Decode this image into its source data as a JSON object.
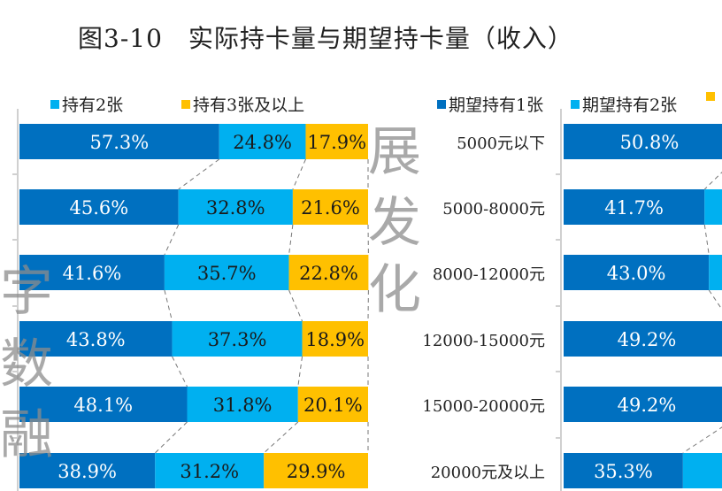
{
  "title": "图3-10　实际持卡量与期望持卡量（收入）",
  "colors": {
    "s1": "#0070C0",
    "s2": "#00B0F0",
    "s3": "#FFC000"
  },
  "watermark": [
    "融",
    "数",
    "字",
    "化",
    "发",
    "展"
  ],
  "chart_data": [
    {
      "type": "bar",
      "orientation": "horizontal",
      "stacked": "100%",
      "legend": [
        "持有2张",
        "持有3张及以上"
      ],
      "legend_placement": "top",
      "series": [
        {
          "values": [
            57.3,
            45.6,
            41.6,
            43.8,
            48.1,
            38.9
          ],
          "labels": [
            "57.3%",
            "45.6%",
            "41.6%",
            "43.8%",
            "48.1%",
            "38.9%"
          ]
        },
        {
          "name": "持有2张",
          "values": [
            24.8,
            32.8,
            35.7,
            37.3,
            31.8,
            31.2
          ],
          "labels": [
            "24.8%",
            "32.8%",
            "35.7%",
            "37.3%",
            "31.8%",
            "31.2%"
          ]
        },
        {
          "name": "持有3张及以上",
          "values": [
            17.9,
            21.6,
            22.8,
            18.9,
            20.1,
            29.9
          ],
          "labels": [
            "17.9%",
            "21.6%",
            "22.8%",
            "18.9%",
            "20.1%",
            "29.9%"
          ]
        }
      ],
      "series_lines": true
    },
    {
      "type": "bar",
      "orientation": "horizontal",
      "stacked": "100%",
      "categories": [
        "5000元以下",
        "5000-8000元",
        "8000-12000元",
        "12000-15000元",
        "15000-20000元",
        "20000元及以上"
      ],
      "legend": [
        "期望持有1张",
        "期望持有2张"
      ],
      "legend_placement": "top",
      "series": [
        {
          "name": "期望持有1张",
          "values": [
            50.8,
            41.7,
            43.0,
            49.2,
            49.2,
            35.3
          ],
          "labels": [
            "50.8%",
            "41.7%",
            "43.0%",
            "49.2%",
            "49.2%",
            "35.3%"
          ]
        },
        {
          "name": "期望持有2张"
        }
      ],
      "series_lines": true
    }
  ]
}
